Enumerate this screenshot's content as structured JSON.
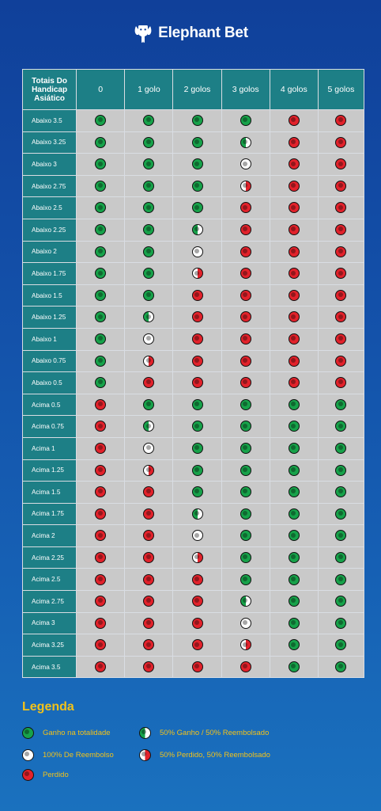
{
  "brand": {
    "name": "Elephant Bet",
    "logo_icon": "elephant-logo-icon"
  },
  "table": {
    "header": [
      "Totais Do Handicap Asiático",
      "0",
      "1 golo",
      "2 golos",
      "3 golos",
      "4 golos",
      "5 golos"
    ],
    "rows": [
      {
        "label": "Abaixo 3.5",
        "results": [
          "win",
          "win",
          "win",
          "win",
          "lose",
          "lose"
        ]
      },
      {
        "label": "Abaixo 3.25",
        "results": [
          "win",
          "win",
          "win",
          "halfwin",
          "lose",
          "lose"
        ]
      },
      {
        "label": "Abaixo 3",
        "results": [
          "win",
          "win",
          "win",
          "refund",
          "lose",
          "lose"
        ]
      },
      {
        "label": "Abaixo 2.75",
        "results": [
          "win",
          "win",
          "win",
          "halflose",
          "lose",
          "lose"
        ]
      },
      {
        "label": "Abaixo 2.5",
        "results": [
          "win",
          "win",
          "win",
          "lose",
          "lose",
          "lose"
        ]
      },
      {
        "label": "Abaixo 2.25",
        "results": [
          "win",
          "win",
          "halfwin",
          "lose",
          "lose",
          "lose"
        ]
      },
      {
        "label": "Abaixo 2",
        "results": [
          "win",
          "win",
          "refund",
          "lose",
          "lose",
          "lose"
        ]
      },
      {
        "label": "Abaixo 1.75",
        "results": [
          "win",
          "win",
          "halflose",
          "lose",
          "lose",
          "lose"
        ]
      },
      {
        "label": "Abaixo 1.5",
        "results": [
          "win",
          "win",
          "lose",
          "lose",
          "lose",
          "lose"
        ]
      },
      {
        "label": "Abaixo 1.25",
        "results": [
          "win",
          "halfwin",
          "lose",
          "lose",
          "lose",
          "lose"
        ]
      },
      {
        "label": "Abaixo 1",
        "results": [
          "win",
          "refund",
          "lose",
          "lose",
          "lose",
          "lose"
        ]
      },
      {
        "label": "Abaixo 0.75",
        "results": [
          "win",
          "halflose",
          "lose",
          "lose",
          "lose",
          "lose"
        ]
      },
      {
        "label": "Abaixo 0.5",
        "results": [
          "win",
          "lose",
          "lose",
          "lose",
          "lose",
          "lose"
        ]
      },
      {
        "label": "Acima 0.5",
        "results": [
          "lose",
          "win",
          "win",
          "win",
          "win",
          "win"
        ]
      },
      {
        "label": "Acima 0.75",
        "results": [
          "lose",
          "halfwin",
          "win",
          "win",
          "win",
          "win"
        ]
      },
      {
        "label": "Acima 1",
        "results": [
          "lose",
          "refund",
          "win",
          "win",
          "win",
          "win"
        ]
      },
      {
        "label": "Acima 1.25",
        "results": [
          "lose",
          "halflose",
          "win",
          "win",
          "win",
          "win"
        ]
      },
      {
        "label": "Acima 1.5",
        "results": [
          "lose",
          "lose",
          "win",
          "win",
          "win",
          "win"
        ]
      },
      {
        "label": "Acima 1.75",
        "results": [
          "lose",
          "lose",
          "halfwin",
          "win",
          "win",
          "win"
        ]
      },
      {
        "label": "Acima 2",
        "results": [
          "lose",
          "lose",
          "refund",
          "win",
          "win",
          "win"
        ]
      },
      {
        "label": "Acima 2.25",
        "results": [
          "lose",
          "lose",
          "halflose",
          "win",
          "win",
          "win"
        ]
      },
      {
        "label": "Acima 2.5",
        "results": [
          "lose",
          "lose",
          "lose",
          "win",
          "win",
          "win"
        ]
      },
      {
        "label": "Acima 2.75",
        "results": [
          "lose",
          "lose",
          "lose",
          "halfwin",
          "win",
          "win"
        ]
      },
      {
        "label": "Acima 3",
        "results": [
          "lose",
          "lose",
          "lose",
          "refund",
          "win",
          "win"
        ]
      },
      {
        "label": "Acima 3.25",
        "results": [
          "lose",
          "lose",
          "lose",
          "halflose",
          "win",
          "win"
        ]
      },
      {
        "label": "Acima 3.5",
        "results": [
          "lose",
          "lose",
          "lose",
          "lose",
          "win",
          "win"
        ]
      }
    ]
  },
  "legend": {
    "title": "Legenda",
    "items": [
      {
        "key": "win",
        "label": "Ganho na totalidade"
      },
      {
        "key": "halfwin",
        "label": "50% Ganho / 50% Reembolsado"
      },
      {
        "key": "refund",
        "label": "100% De Reembolso"
      },
      {
        "key": "halflose",
        "label": "50% Perdido, 50% Reembolsado"
      },
      {
        "key": "lose",
        "label": "Perdido"
      }
    ]
  },
  "colors": {
    "background_top": "#10409a",
    "background_bottom": "#1a71be",
    "header_teal": "#1d7f86",
    "cell_grey": "#c9c9c9",
    "win_green": "#17a24a",
    "lose_red": "#e2222b",
    "legend_yellow": "#f2c21a"
  }
}
